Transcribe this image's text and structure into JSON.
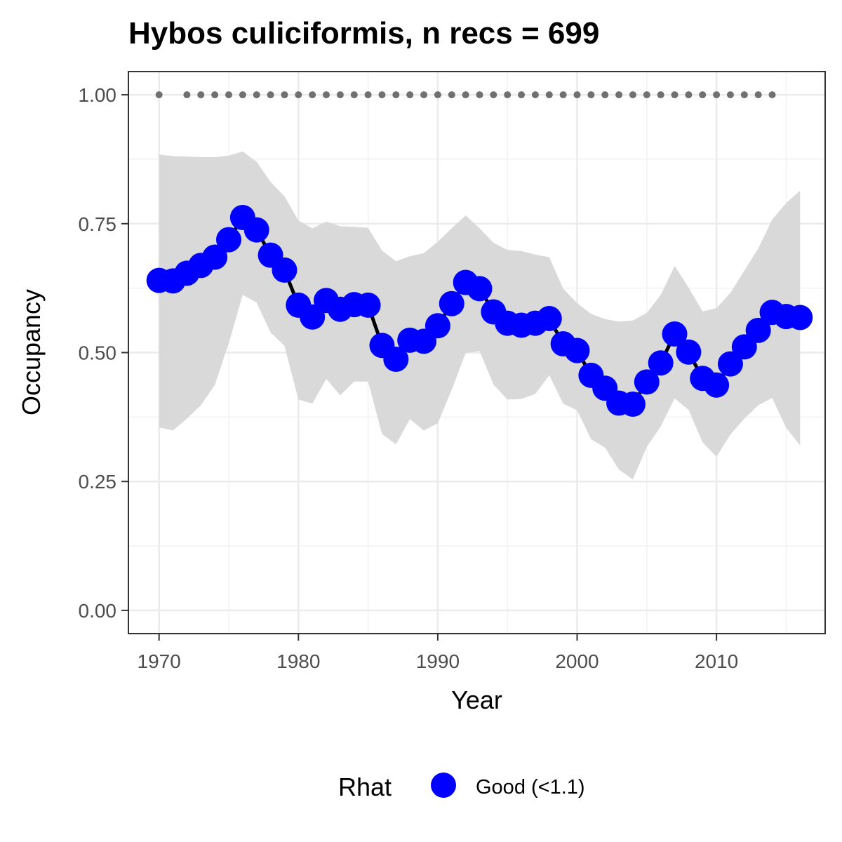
{
  "chart_data": {
    "type": "line",
    "title": "Hybos culiciformis, n recs = 699",
    "xlabel": "Year",
    "ylabel": "Occupancy",
    "xlim": [
      1967.8,
      2017.8
    ],
    "ylim": [
      -0.045,
      1.045
    ],
    "x_ticks": [
      1970,
      1980,
      1990,
      2000,
      2010
    ],
    "x_tick_labels": [
      "1970",
      "1980",
      "1990",
      "2000",
      "2010"
    ],
    "y_ticks": [
      0,
      0.25,
      0.5,
      0.75,
      1.0
    ],
    "y_tick_labels": [
      "0.00",
      "0.25",
      "0.50",
      "0.75",
      "1.00"
    ],
    "grid": true,
    "legend": {
      "title": "Rhat",
      "position": "bottom",
      "entries": [
        {
          "label": "Good (<1.1)",
          "color": "#0000ff"
        }
      ]
    },
    "colors": {
      "points": "#0000ff",
      "line": "#000000",
      "ribbon": "#d9d9d9",
      "record_dots": "#707070"
    },
    "years": [
      1970,
      1971,
      1972,
      1973,
      1974,
      1975,
      1976,
      1977,
      1978,
      1979,
      1980,
      1981,
      1982,
      1983,
      1984,
      1985,
      1986,
      1987,
      1988,
      1989,
      1990,
      1991,
      1992,
      1993,
      1994,
      1995,
      1996,
      1997,
      1998,
      1999,
      2000,
      2001,
      2002,
      2003,
      2004,
      2005,
      2006,
      2007,
      2008,
      2009,
      2010,
      2011,
      2012,
      2013,
      2014,
      2015,
      2016
    ],
    "occupancy": [
      0.64,
      0.639,
      0.654,
      0.669,
      0.685,
      0.719,
      0.762,
      0.738,
      0.689,
      0.66,
      0.592,
      0.569,
      0.601,
      0.584,
      0.593,
      0.592,
      0.514,
      0.487,
      0.524,
      0.522,
      0.552,
      0.595,
      0.636,
      0.624,
      0.579,
      0.557,
      0.553,
      0.557,
      0.566,
      0.517,
      0.504,
      0.456,
      0.431,
      0.402,
      0.4,
      0.443,
      0.48,
      0.536,
      0.501,
      0.45,
      0.437,
      0.478,
      0.511,
      0.543,
      0.578,
      0.57,
      0.568
    ],
    "lower": [
      0.355,
      0.349,
      0.372,
      0.398,
      0.437,
      0.518,
      0.612,
      0.597,
      0.539,
      0.513,
      0.409,
      0.401,
      0.449,
      0.417,
      0.444,
      0.444,
      0.342,
      0.322,
      0.371,
      0.349,
      0.363,
      0.428,
      0.499,
      0.503,
      0.438,
      0.409,
      0.41,
      0.42,
      0.456,
      0.401,
      0.388,
      0.332,
      0.316,
      0.273,
      0.254,
      0.317,
      0.357,
      0.411,
      0.389,
      0.326,
      0.298,
      0.341,
      0.372,
      0.398,
      0.412,
      0.354,
      0.32
    ],
    "upper": [
      0.884,
      0.881,
      0.88,
      0.879,
      0.879,
      0.882,
      0.89,
      0.87,
      0.831,
      0.803,
      0.756,
      0.741,
      0.754,
      0.745,
      0.744,
      0.742,
      0.698,
      0.677,
      0.687,
      0.693,
      0.715,
      0.741,
      0.766,
      0.741,
      0.713,
      0.699,
      0.697,
      0.69,
      0.685,
      0.624,
      0.596,
      0.575,
      0.565,
      0.56,
      0.562,
      0.577,
      0.612,
      0.668,
      0.626,
      0.58,
      0.586,
      0.616,
      0.659,
      0.702,
      0.758,
      0.79,
      0.814
    ],
    "record_years": [
      1970,
      1972,
      1973,
      1974,
      1975,
      1976,
      1977,
      1978,
      1979,
      1980,
      1981,
      1982,
      1983,
      1984,
      1985,
      1986,
      1987,
      1988,
      1989,
      1990,
      1991,
      1992,
      1993,
      1994,
      1995,
      1996,
      1997,
      1998,
      1999,
      2000,
      2001,
      2002,
      2003,
      2004,
      2005,
      2006,
      2007,
      2008,
      2009,
      2010,
      2011,
      2012,
      2013,
      2014
    ],
    "record_value": 1.0
  }
}
